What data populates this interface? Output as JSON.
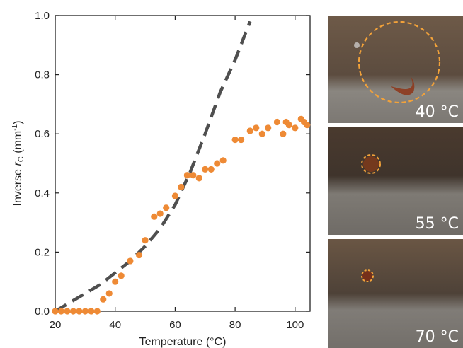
{
  "chart_data": {
    "type": "scatter",
    "title": "",
    "xlabel": "Temperature (°C)",
    "ylabel_main": "Inverse ",
    "ylabel_var": "r",
    "ylabel_sub": "C",
    "ylabel_unit": " (mm",
    "ylabel_unit_exp": "-1",
    "ylabel_unit_close": ")",
    "xlim": [
      20,
      105
    ],
    "ylim": [
      0,
      1.0
    ],
    "xticks": [
      20,
      40,
      60,
      80,
      100
    ],
    "yticks": [
      0.0,
      0.2,
      0.4,
      0.6,
      0.8,
      1.0
    ],
    "grid": false,
    "series": [
      {
        "kind": "points",
        "color": "#ee8a35",
        "x": [
          20,
          22,
          24,
          26,
          28,
          30,
          32,
          34,
          36,
          38,
          40,
          42,
          45,
          48,
          50,
          53,
          55,
          57,
          60,
          62,
          64,
          66,
          68,
          70,
          72,
          74,
          76,
          80,
          82,
          85,
          87,
          89,
          91,
          94,
          96,
          97,
          98,
          100,
          102,
          103,
          104
        ],
        "y": [
          0.0,
          0.0,
          0.0,
          0.0,
          0.0,
          0.0,
          0.0,
          0.0,
          0.04,
          0.06,
          0.1,
          0.12,
          0.17,
          0.19,
          0.24,
          0.32,
          0.33,
          0.35,
          0.39,
          0.42,
          0.46,
          0.46,
          0.45,
          0.48,
          0.48,
          0.5,
          0.51,
          0.58,
          0.58,
          0.61,
          0.62,
          0.6,
          0.62,
          0.64,
          0.6,
          0.64,
          0.63,
          0.62,
          0.65,
          0.64,
          0.63
        ]
      },
      {
        "kind": "dashed-line",
        "color": "#4f4f4f",
        "x": [
          20,
          25,
          30,
          35,
          40,
          45,
          50,
          55,
          60,
          65,
          70,
          75,
          80,
          85
        ],
        "y": [
          0.0,
          0.03,
          0.06,
          0.09,
          0.13,
          0.17,
          0.22,
          0.28,
          0.36,
          0.47,
          0.6,
          0.74,
          0.85,
          0.98
        ]
      }
    ]
  },
  "photos": [
    {
      "label": "40 °C",
      "ring_scale": 1.0
    },
    {
      "label": "55 °C",
      "ring_scale": 0.22
    },
    {
      "label": "70 °C",
      "ring_scale": 0.12
    }
  ],
  "colors": {
    "points": "#ee8a35",
    "model_line": "#4f4f4f",
    "ring": "#f2a23a"
  }
}
